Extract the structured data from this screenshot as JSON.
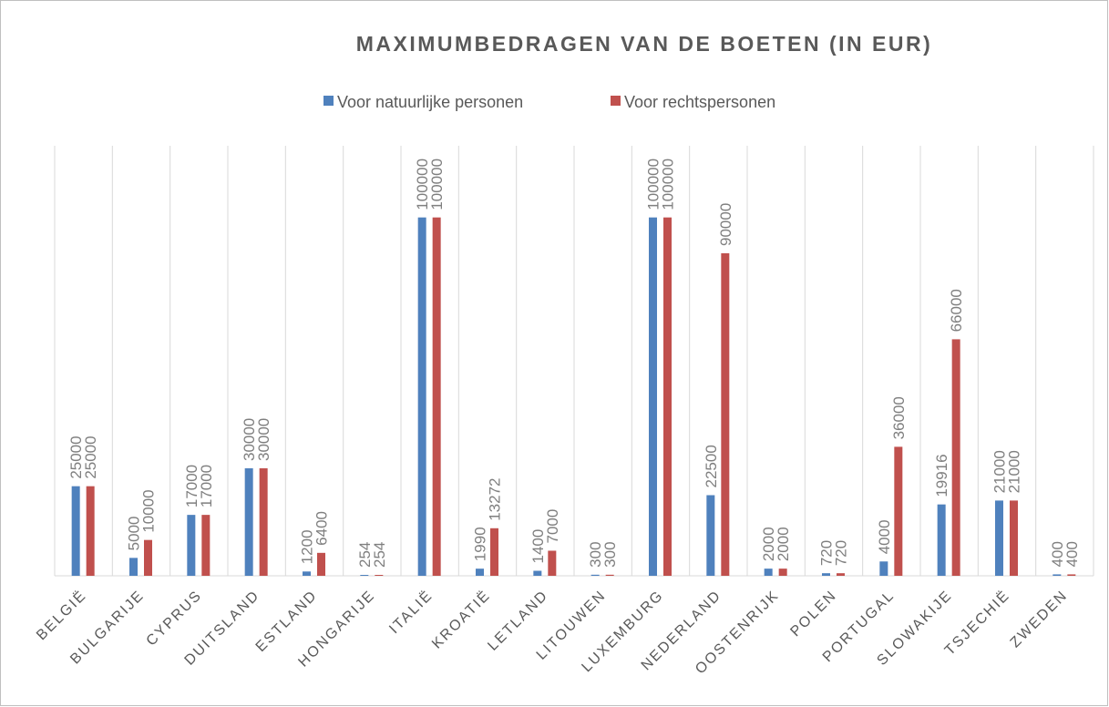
{
  "chart_data": {
    "type": "bar",
    "title": "MAXIMUMBEDRAGEN VAN DE BOETEN (IN EUR)",
    "categories": [
      "BELGIË",
      "BULGARIJE",
      "CYPRUS",
      "DUITSLAND",
      "ESTLAND",
      "HONGARIJE",
      "ITALIË",
      "KROATIË",
      "LETLAND",
      "LITOUWEN",
      "LUXEMBURG",
      "NEDERLAND",
      "OOSTENRIJK",
      "POLEN",
      "PORTUGAL",
      "SLOWAKIJE",
      "TSJECHIË",
      "ZWEDEN"
    ],
    "series": [
      {
        "name": "Voor natuurlijke personen",
        "color": "#4f81bd",
        "values": [
          25000,
          5000,
          17000,
          30000,
          1200,
          254,
          100000,
          1990,
          1400,
          300,
          100000,
          22500,
          2000,
          720,
          4000,
          19916,
          21000,
          400
        ]
      },
      {
        "name": "Voor rechtspersonen",
        "color": "#c0504d",
        "values": [
          25000,
          10000,
          17000,
          30000,
          6400,
          254,
          100000,
          13272,
          7000,
          300,
          100000,
          90000,
          2000,
          720,
          36000,
          66000,
          21000,
          400
        ]
      }
    ],
    "ylim": [
      0,
      120000
    ],
    "grid": true,
    "legend": "top"
  }
}
